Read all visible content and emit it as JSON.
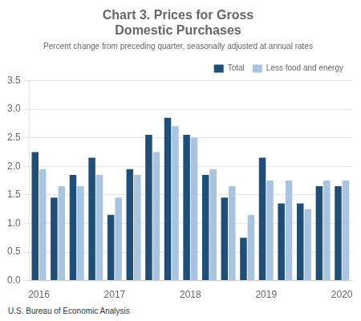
{
  "chart_data": {
    "type": "bar",
    "title": "Chart 3. Prices for Gross\nDomestic Purchases",
    "subtitle": "Percent change from preceding quarter, seasonally adjusted at annual rates",
    "footer": "U.S. Bureau of Economic Analysis",
    "categories": [
      "2016",
      null,
      null,
      null,
      "2017",
      null,
      null,
      null,
      "2018",
      null,
      null,
      null,
      "2019",
      null,
      null,
      null,
      "2020"
    ],
    "series": [
      {
        "name": "Total",
        "color": "#1F4E79",
        "values": [
          2.25,
          1.45,
          1.85,
          2.15,
          1.15,
          1.95,
          2.55,
          2.85,
          2.55,
          1.85,
          1.45,
          0.75,
          2.15,
          1.35,
          1.35,
          1.65,
          1.65
        ]
      },
      {
        "name": "Less food and energy",
        "color": "#A8C4E0",
        "values": [
          1.95,
          1.65,
          1.65,
          1.85,
          1.45,
          1.85,
          2.25,
          2.7,
          2.5,
          1.95,
          1.65,
          1.15,
          1.75,
          1.75,
          1.25,
          1.75,
          1.75
        ]
      }
    ],
    "ylim": [
      0,
      3.5
    ],
    "yticks": [
      {
        "value": 0,
        "label": "0.0"
      },
      0.5,
      {
        "value": 1,
        "label": "1.0"
      },
      1.5,
      {
        "value": 2,
        "label": "2.0"
      },
      2.5,
      {
        "value": 3,
        "label": "3.0"
      },
      3.5
    ],
    "grid": true,
    "legend": "upper right"
  }
}
